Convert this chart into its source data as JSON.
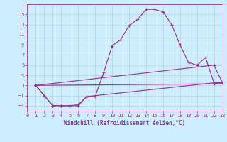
{
  "xlabel": "Windchill (Refroidissement éolien,°C)",
  "background_color": "#cceeff",
  "line_color": "#993399",
  "xlim": [
    0,
    23
  ],
  "ylim": [
    -4,
    17
  ],
  "xticks": [
    0,
    1,
    2,
    3,
    4,
    5,
    6,
    7,
    8,
    9,
    10,
    11,
    12,
    13,
    14,
    15,
    16,
    17,
    18,
    19,
    20,
    21,
    22,
    23
  ],
  "yticks": [
    -3,
    -1,
    1,
    3,
    5,
    7,
    9,
    11,
    13,
    15
  ],
  "lines": [
    {
      "x": [
        1,
        2,
        3,
        4,
        5,
        6,
        7,
        8,
        9,
        10,
        11,
        12,
        13,
        14,
        15,
        16,
        17,
        18,
        19,
        20,
        21,
        22,
        23
      ],
      "y": [
        1,
        -1,
        -3,
        -3,
        -3,
        -3,
        -1.2,
        -1.2,
        3.5,
        8.8,
        10,
        12.8,
        14,
        16,
        16,
        15.5,
        13,
        9,
        5.5,
        5,
        6.5,
        1.5,
        1.5
      ]
    },
    {
      "x": [
        1,
        3,
        4,
        5,
        6,
        7,
        22,
        23
      ],
      "y": [
        1,
        -3,
        -3,
        -3,
        -2.8,
        -1.2,
        1.5,
        1.5
      ]
    },
    {
      "x": [
        1,
        22,
        23
      ],
      "y": [
        1,
        5,
        1.5
      ]
    },
    {
      "x": [
        1,
        22,
        23
      ],
      "y": [
        1,
        1.3,
        1.5
      ]
    }
  ],
  "xlabel_fontsize": 5.5,
  "tick_fontsize": 5,
  "linewidth": 0.85,
  "markersize": 3.5,
  "grid_color": "#b0cccc",
  "grid_linewidth": 0.4
}
